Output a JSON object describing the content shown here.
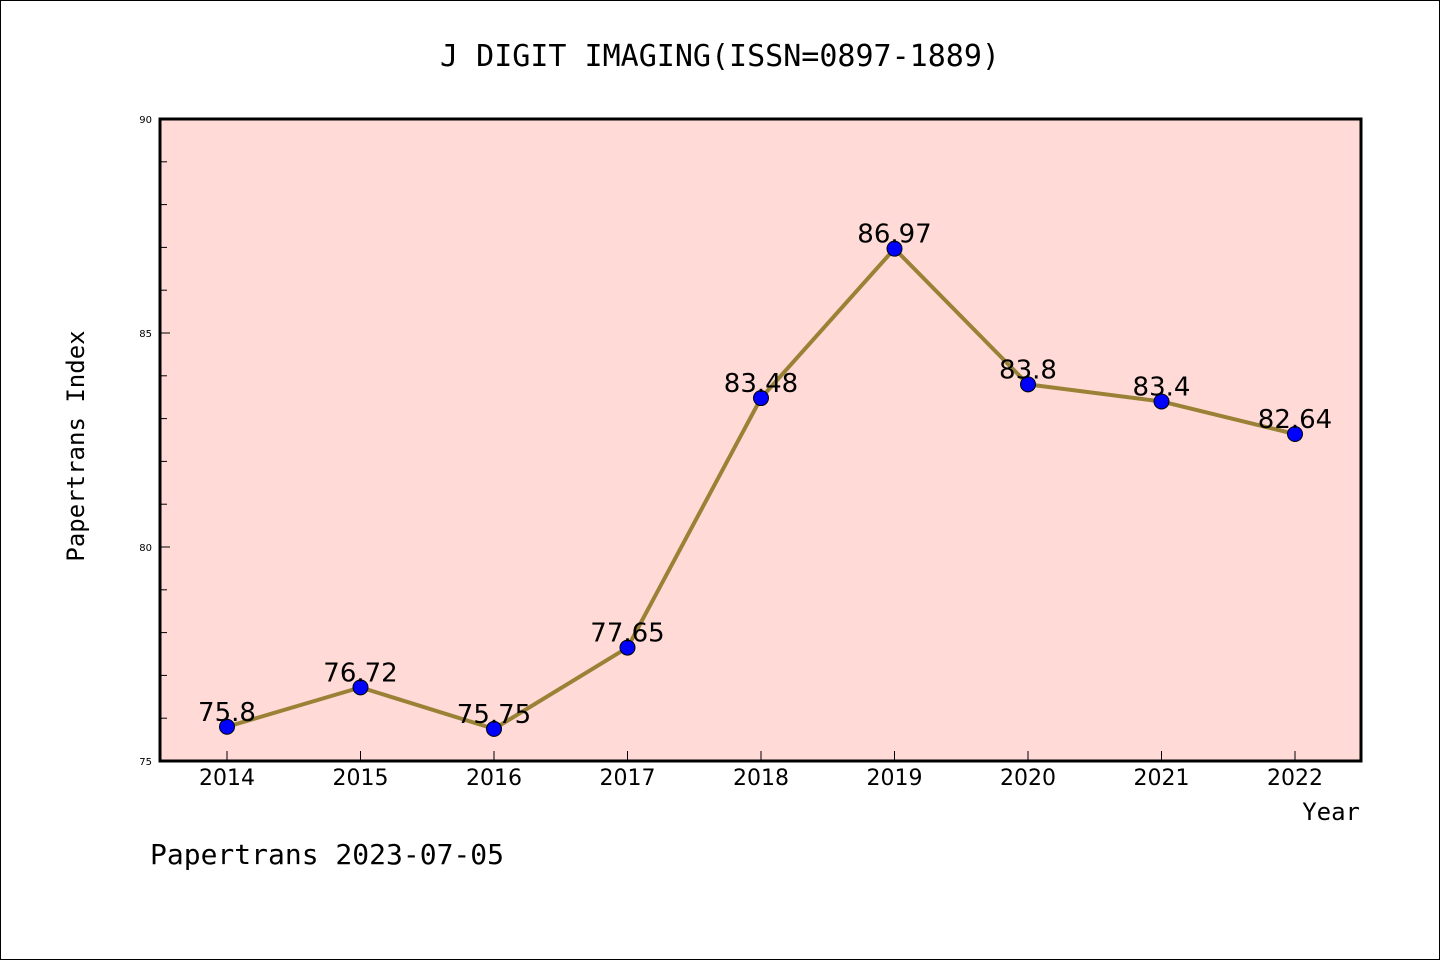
{
  "chart_data": {
    "type": "line",
    "title": "J DIGIT IMAGING(ISSN=0897-1889)",
    "xlabel": "Year",
    "ylabel": "Papertrans Index",
    "categories": [
      "2014",
      "2015",
      "2016",
      "2017",
      "2018",
      "2019",
      "2020",
      "2021",
      "2022"
    ],
    "series": [
      {
        "values": [
          75.8,
          76.72,
          75.75,
          77.65,
          83.48,
          86.97,
          83.8,
          83.4,
          82.64
        ],
        "labels": [
          "75.8",
          "76.72",
          "75.75",
          "77.65",
          "83.48",
          "86.97",
          "83.8",
          "83.4",
          "82.64"
        ]
      }
    ],
    "ylim": [
      75,
      90
    ],
    "yticks": [
      75,
      80,
      85,
      90
    ],
    "grid": false,
    "legend": "none",
    "colors": {
      "plot_background": "#FFDAD7",
      "line": "#998235",
      "marker": "#0000FF"
    }
  },
  "footer": "Papertrans 2023-07-05"
}
